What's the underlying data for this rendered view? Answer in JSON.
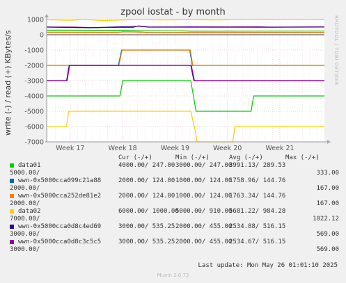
{
  "chart_data": {
    "type": "line",
    "title": "zpool iostat - by month",
    "ylabel": "write (-) / read (+) KBytes/s",
    "side_label": "RRDTOOL / TOBI OETIKER",
    "x_ticks": [
      "Week 17",
      "Week 18",
      "Week 19",
      "Week 20",
      "Week 21"
    ],
    "xlim": [
      16.55,
      21.85
    ],
    "y_ticks": [
      1000,
      0,
      -1000,
      -2000,
      -3000,
      -4000,
      -5000,
      -6000,
      -7000
    ],
    "ylim": [
      -7000,
      1000
    ],
    "grid": true,
    "series": [
      {
        "name": "data01",
        "color": "#00cc00",
        "points": [
          [
            16.55,
            -4000
          ],
          [
            17.95,
            -4000
          ],
          [
            18.0,
            -3000
          ],
          [
            19.3,
            -3000
          ],
          [
            19.35,
            -4000
          ],
          [
            19.4,
            -5000
          ],
          [
            20.45,
            -5000
          ],
          [
            20.5,
            -4000
          ],
          [
            21.85,
            -4000
          ]
        ]
      },
      {
        "name": "wwn-0x5000cca099c21a88",
        "color": "#0066b3",
        "points": [
          [
            16.55,
            -2000
          ],
          [
            17.92,
            -2000
          ],
          [
            17.98,
            -1000
          ],
          [
            19.28,
            -1000
          ],
          [
            19.33,
            -2000
          ],
          [
            21.85,
            -2000
          ]
        ]
      },
      {
        "name": "wwn-0x5000cca252de81e2",
        "color": "#ff8000",
        "points": [
          [
            16.55,
            -2000
          ],
          [
            17.93,
            -2000
          ],
          [
            17.99,
            -1000
          ],
          [
            19.29,
            -1000
          ],
          [
            19.34,
            -2000
          ],
          [
            21.85,
            -2000
          ]
        ]
      },
      {
        "name": "data02",
        "color": "#ffcc00",
        "points": [
          [
            16.55,
            -6000
          ],
          [
            16.93,
            -6000
          ],
          [
            16.97,
            -5000
          ],
          [
            19.3,
            -5000
          ],
          [
            19.38,
            -6200
          ],
          [
            19.42,
            -7000
          ],
          [
            20.1,
            -7000
          ],
          [
            20.14,
            -6000
          ],
          [
            21.85,
            -6000
          ]
        ]
      },
      {
        "name": "wwn-0x5000cca0d8c4ed69",
        "color": "#330099",
        "points": [
          [
            16.55,
            -3000
          ],
          [
            16.93,
            -3000
          ],
          [
            16.98,
            -2000
          ],
          [
            19.3,
            -2000
          ],
          [
            19.36,
            -3000
          ],
          [
            21.85,
            -3000
          ]
        ]
      },
      {
        "name": "wwn-0x5000cca0d8c3c5c5",
        "color": "#990099",
        "points": [
          [
            16.55,
            -3000
          ],
          [
            16.94,
            -3000
          ],
          [
            16.99,
            -2000
          ],
          [
            19.31,
            -2000
          ],
          [
            19.37,
            -3000
          ],
          [
            21.85,
            -3000
          ]
        ]
      },
      {
        "name": "data02 read",
        "color": "#ffcc00",
        "legend": false,
        "points": [
          [
            16.55,
            980
          ],
          [
            17.0,
            950
          ],
          [
            17.3,
            1000
          ],
          [
            17.6,
            930
          ],
          [
            17.9,
            960
          ],
          [
            18.3,
            990
          ],
          [
            18.7,
            970
          ],
          [
            19.2,
            980
          ],
          [
            19.8,
            975
          ],
          [
            20.4,
            990
          ],
          [
            21.0,
            985
          ],
          [
            21.85,
            980
          ]
        ]
      },
      {
        "name": "wwn-0x5000cca0d8c3c5c5 read",
        "color": "#990099",
        "legend": false,
        "points": [
          [
            16.55,
            510
          ],
          [
            17.1,
            500
          ],
          [
            17.4,
            470
          ],
          [
            18.2,
            480
          ],
          [
            18.3,
            580
          ],
          [
            18.5,
            510
          ],
          [
            19.3,
            520
          ],
          [
            20.0,
            515
          ],
          [
            20.6,
            520
          ],
          [
            20.8,
            500
          ],
          [
            21.85,
            515
          ]
        ]
      },
      {
        "name": "wwn-0x5000cca0d8c4ed69 read",
        "color": "#330099",
        "legend": false,
        "points": [
          [
            16.55,
            500
          ],
          [
            17.4,
            460
          ],
          [
            18.3,
            560
          ],
          [
            18.5,
            500
          ],
          [
            20.7,
            490
          ],
          [
            21.85,
            505
          ]
        ]
      },
      {
        "name": "data01 read",
        "color": "#00cc00",
        "legend": false,
        "points": [
          [
            16.55,
            300
          ],
          [
            18.0,
            290
          ],
          [
            18.5,
            260
          ],
          [
            19.2,
            250
          ],
          [
            19.3,
            230
          ],
          [
            21.85,
            240
          ]
        ]
      },
      {
        "name": "wwn-0x5000cca099c21a88 read",
        "color": "#0066b3",
        "legend": false,
        "points": [
          [
            16.55,
            160
          ],
          [
            17.9,
            150
          ],
          [
            18.0,
            190
          ],
          [
            18.3,
            180
          ],
          [
            18.5,
            140
          ],
          [
            21.85,
            150
          ]
        ]
      },
      {
        "name": "wwn-0x5000cca252de81e2 read",
        "color": "#ff8000",
        "legend": false,
        "points": [
          [
            16.55,
            165
          ],
          [
            17.9,
            155
          ],
          [
            18.0,
            185
          ],
          [
            18.3,
            175
          ],
          [
            18.5,
            145
          ],
          [
            21.85,
            150
          ]
        ]
      }
    ]
  },
  "legend": {
    "headers": {
      "cur": "Cur (-/+)",
      "min": "Min (-/+)",
      "avg": "Avg (-/+)",
      "max": "Max (-/+)"
    },
    "rows": [
      {
        "color": "#00cc00",
        "name": "data01",
        "cur": "4000.00/ 247.00",
        "min": "3000.00/ 247.00",
        "avg": "3991.13/ 289.53",
        "extra1": "5000.00/",
        "extra2": "333.00"
      },
      {
        "color": "#0066b3",
        "name": "wwn-0x5000cca099c21a88",
        "cur": "2000.00/ 124.00",
        "min": "1000.00/ 124.00",
        "avg": "1758.96/ 144.76",
        "extra1": "2000.00/",
        "extra2": "167.00"
      },
      {
        "color": "#ff8000",
        "name": "wwn-0x5000cca252de81e2",
        "cur": "2000.00/ 124.00",
        "min": "1000.00/ 124.00",
        "avg": "1763.34/ 144.76",
        "extra1": "2000.00/",
        "extra2": "167.00"
      },
      {
        "color": "#ffcc00",
        "name": "data02",
        "cur": "6000.00/ 1000.00",
        "min": "5000.00/ 910.00",
        "avg": "5681.22/ 984.28",
        "extra1": "7000.00/",
        "extra2": "1022.12"
      },
      {
        "color": "#330099",
        "name": "wwn-0x5000cca0d8c4ed69",
        "cur": "3000.00/ 535.25",
        "min": "2000.00/ 455.00",
        "avg": "2534.88/ 516.15",
        "extra1": "3000.00/",
        "extra2": "569.00"
      },
      {
        "color": "#990099",
        "name": "wwn-0x5000cca0d8c3c5c5",
        "cur": "3000.00/ 535.25",
        "min": "2000.00/ 455.00",
        "avg": "2534.67/ 516.15",
        "extra1": "3000.00/",
        "extra2": "569.00"
      }
    ]
  },
  "footer": {
    "last_update": "Last update: Mon May 26 01:01:10 2025",
    "munin": "Munin 2.0.73"
  }
}
